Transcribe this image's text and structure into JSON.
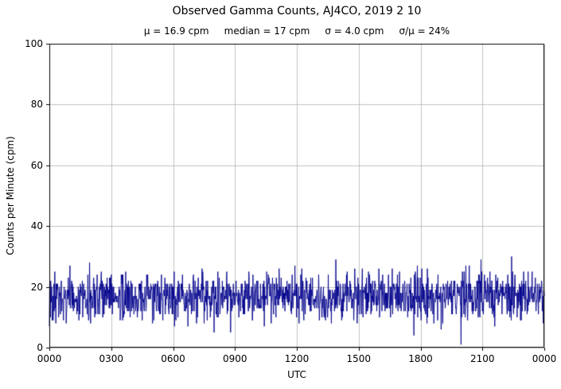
{
  "chart_data": {
    "type": "line",
    "title": "Observed Gamma Counts, AJ4CO, 2019 2 10",
    "subtitle": "μ = 16.9 cpm     median = 17 cpm     σ = 4.0 cpm     σ/μ = 24%",
    "subtitle_stats": {
      "mean_cpm": 16.9,
      "median_cpm": 17,
      "sigma_cpm": 4.0,
      "sigma_over_mu_pct": 24
    },
    "xlabel": "UTC",
    "ylabel": "Counts per Minute (cpm)",
    "x_tick_labels": [
      "0000",
      "0300",
      "0600",
      "0900",
      "1200",
      "1500",
      "1800",
      "2100",
      "0000"
    ],
    "y_ticks": [
      0,
      20,
      40,
      60,
      80,
      100
    ],
    "ylim": [
      0,
      100
    ],
    "x_range_minutes": [
      0,
      1440
    ],
    "grid": true,
    "line_color": "#00008b",
    "grid_color": "#b2b2b2",
    "frame_color": "#000000",
    "series": [
      {
        "name": "observed-gamma-counts",
        "n_points": 1440,
        "sample_interval": "1 minute",
        "approx_min_cpm": 4,
        "approx_max_cpm": 31,
        "generation": {
          "distribution": "gaussian",
          "mean": 16.9,
          "sigma": 4.0,
          "seed": 20190210,
          "round_to_integer": true,
          "clip_min": 0
        }
      }
    ]
  }
}
